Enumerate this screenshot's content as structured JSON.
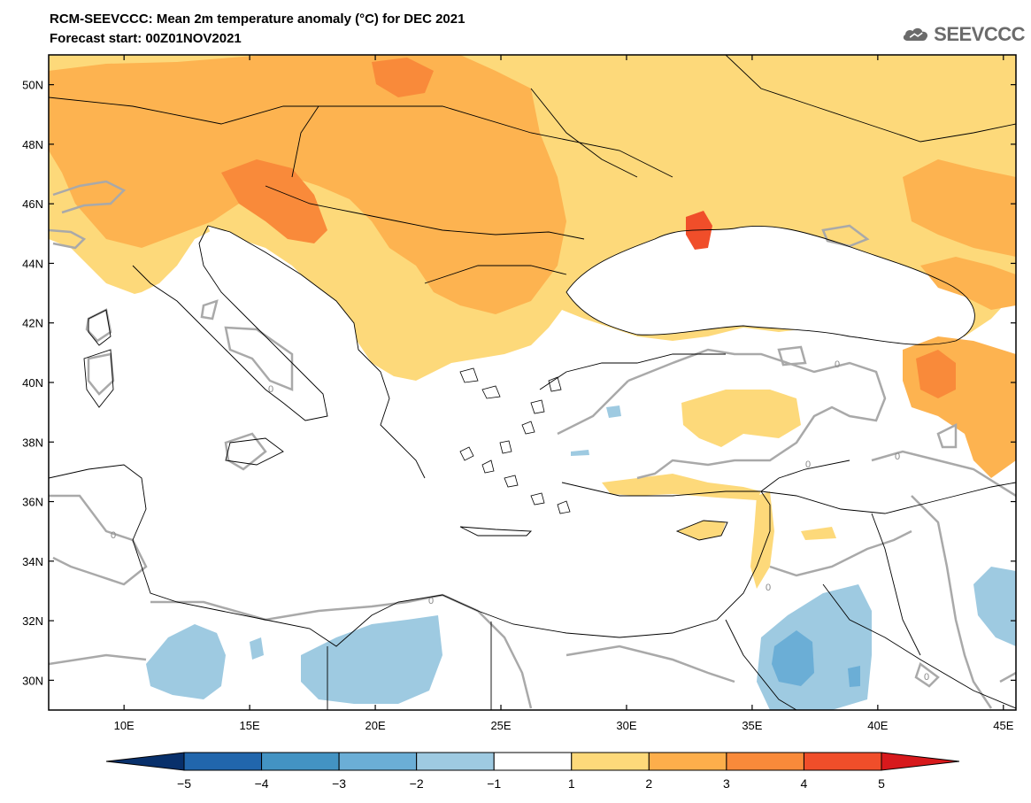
{
  "header": {
    "title": "RCM-SEEVCCC: Mean 2m temperature anomaly (°C) for DEC 2021",
    "subtitle": "Forecast start: 00Z01NOV2021",
    "logo_text": "SEEVCCC"
  },
  "map": {
    "projection": "lat-lon",
    "lon_range": [
      7,
      45.5
    ],
    "lat_range": [
      29,
      51
    ],
    "lon_ticks": [
      10,
      15,
      20,
      25,
      30,
      35,
      40,
      45
    ],
    "lon_tick_labels": [
      "10E",
      "15E",
      "20E",
      "25E",
      "30E",
      "35E",
      "40E",
      "45E"
    ],
    "lat_ticks": [
      30,
      32,
      34,
      36,
      38,
      40,
      42,
      44,
      46,
      48,
      50
    ],
    "lat_tick_labels": [
      "30N",
      "32N",
      "34N",
      "36N",
      "38N",
      "40N",
      "42N",
      "44N",
      "46N",
      "48N",
      "50N"
    ],
    "contour_label": "0"
  },
  "colorbar": {
    "levels": [
      "-5",
      "-4",
      "-3",
      "-2",
      "-1",
      "1",
      "2",
      "3",
      "4",
      "5"
    ],
    "colors": [
      "#08306b",
      "#2166ac",
      "#4393c3",
      "#6baed6",
      "#9ecae1",
      "#ffffff",
      "#fdd97a",
      "#fdae4b",
      "#f98a3a",
      "#f04e2a",
      "#d7191c"
    ]
  },
  "colors": {
    "land_anomaly_1_2": "#fdd97a",
    "land_anomaly_2_3": "#fdb350",
    "land_anomaly_3_4": "#f98a3a",
    "cold_anomaly": "#9ecae1",
    "cold_anomaly_strong": "#6baed6",
    "contour_gray": "#a9a9a9"
  }
}
